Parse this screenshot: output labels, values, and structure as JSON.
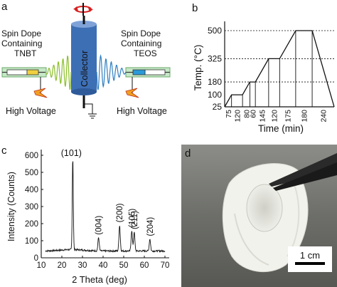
{
  "panels": {
    "a": {
      "letter": "a",
      "left_label": [
        "Spin Dope",
        "Containing",
        "TNBT"
      ],
      "right_label": [
        "Spin Dope",
        "Containing",
        "TEOS"
      ],
      "collector": "Collector",
      "hv_left": "High Voltage",
      "hv_right": "High Voltage"
    },
    "b": {
      "letter": "b"
    },
    "c": {
      "letter": "c"
    },
    "d": {
      "letter": "d",
      "scale_bar": "1 cm"
    }
  },
  "chart_data": [
    {
      "type": "line",
      "panel": "b",
      "xlabel": "Time (min)",
      "ylabel": "Temp. (°C)",
      "x_tick_labels": [
        "75",
        "120",
        "80",
        "60",
        "145",
        "120",
        "175",
        "180",
        "240"
      ],
      "y_ticks": [
        25,
        100,
        180,
        325,
        500
      ],
      "x": [
        0,
        75,
        195,
        275,
        335,
        480,
        600,
        775,
        955,
        1195
      ],
      "y": [
        25,
        100,
        100,
        180,
        180,
        325,
        325,
        500,
        500,
        25
      ],
      "reference_lines": [
        180,
        325,
        500
      ],
      "ylim": [
        25,
        500
      ]
    },
    {
      "type": "line",
      "panel": "c",
      "xlabel": "2 Theta (deg)",
      "ylabel": "Intensity (Counts)",
      "xlim": [
        10,
        70
      ],
      "ylim": [
        0,
        600
      ],
      "x_ticks": [
        10,
        20,
        30,
        40,
        50,
        60,
        70
      ],
      "y_ticks": [
        0,
        100,
        200,
        300,
        400,
        500,
        600
      ],
      "peaks": [
        {
          "label": "(101)",
          "x": 25.3,
          "y": 580
        },
        {
          "label": "(004)",
          "x": 37.8,
          "y": 118
        },
        {
          "label": "(200)",
          "x": 48.0,
          "y": 190
        },
        {
          "label": "(105)",
          "x": 53.9,
          "y": 160
        },
        {
          "label": "(211)",
          "x": 55.1,
          "y": 150
        },
        {
          "label": "(204)",
          "x": 62.7,
          "y": 110
        }
      ],
      "baseline": 40
    }
  ],
  "colors": {
    "collector_fill": "#3d6fb5",
    "collector_top": "#7fa3d8",
    "jet_left": "#8bbf2a",
    "jet_right": "#2f7fc0",
    "rotation_arrow": "#d62020",
    "needle_box": "#b8e0b8",
    "tip_left": "#f0d040",
    "tip_right": "#2a9ad8"
  },
  "icons": [
    "rotation-arrow-icon",
    "ground-icon",
    "lightning-icon"
  ]
}
